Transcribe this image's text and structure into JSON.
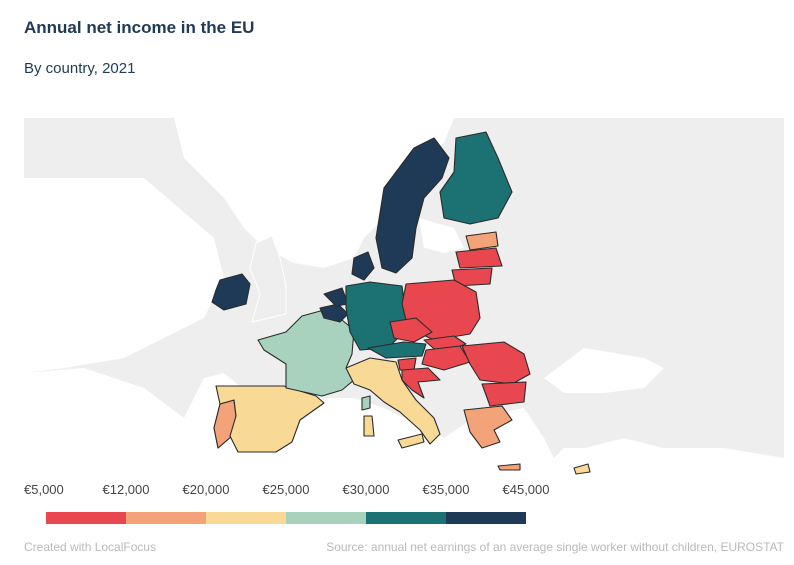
{
  "header": {
    "title": "Annual net income in the EU",
    "subtitle": "By country, 2021"
  },
  "legend": {
    "labels": [
      "€5,000",
      "€12,000",
      "€20,000",
      "€25,000",
      "€30,000",
      "€35,000",
      "€45,000"
    ],
    "colors": [
      "#e8474f",
      "#f4a378",
      "#f8da96",
      "#a8d2bd",
      "#1c7272",
      "#1e3a56"
    ]
  },
  "footer": {
    "credit": "Created with LocalFocus",
    "source": "Source:  annual net earnings of an average single worker without children, EUROSTAT"
  },
  "colors": {
    "title": "#1e3a56",
    "land_non_eu": "#eeeeee",
    "sea": "#ffffff",
    "border": "#2b2b2b"
  }
}
